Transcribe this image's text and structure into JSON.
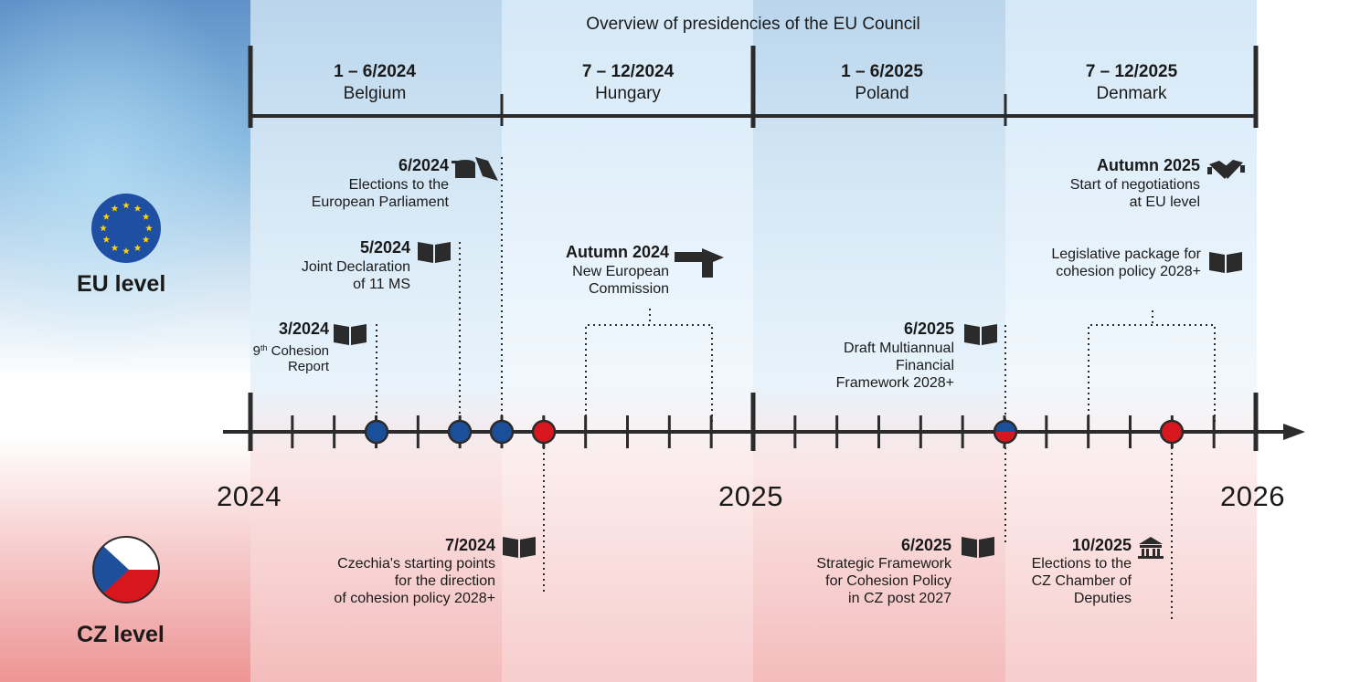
{
  "header": {
    "title": "Overview of presidencies of the EU Council"
  },
  "presidencies": [
    {
      "period": "1 – 6/2024",
      "country": "Belgium"
    },
    {
      "period": "7 – 12/2024",
      "country": "Hungary"
    },
    {
      "period": "1 – 6/2025",
      "country": "Poland"
    },
    {
      "period": "7 – 12/2025",
      "country": "Denmark"
    }
  ],
  "years": [
    "2024",
    "2025",
    "2026"
  ],
  "levels": {
    "eu": "EU level",
    "cz": "CZ level"
  },
  "colors": {
    "eu_blue": "#1c4f9a",
    "cz_red": "#d7161d",
    "line": "#2b2b2b"
  },
  "eu_events": [
    {
      "date": "6/2024",
      "lines": [
        "Elections to the",
        "European Parliament"
      ],
      "icon": "ballot-box-icon"
    },
    {
      "date": "5/2024",
      "lines": [
        "Joint Declaration",
        "of 11 MS"
      ],
      "icon": "book-icon"
    },
    {
      "date": "3/2024",
      "sup": "th",
      "lines": [
        "9",
        " Cohesion",
        "Report"
      ],
      "icon": "book-icon"
    },
    {
      "date": "Autumn 2024",
      "lines": [
        "New European",
        "Commission"
      ],
      "icon": "signpost-icon"
    },
    {
      "date": "6/2025",
      "lines": [
        "Draft Multiannual",
        "Financial",
        "Framework 2028+"
      ],
      "icon": "book-icon"
    },
    {
      "date": "Autumn 2025",
      "lines": [
        "Start of negotiations",
        "at EU level"
      ],
      "icon": "handshake-icon"
    },
    {
      "date": "",
      "lines": [
        "Legislative package for",
        "cohesion policy 2028+"
      ],
      "icon": "book-icon"
    }
  ],
  "cz_events": [
    {
      "date": "7/2024",
      "lines": [
        "Czechia's starting points",
        "for the direction",
        "of cohesion policy 2028+"
      ],
      "icon": "book-icon"
    },
    {
      "date": "6/2025",
      "lines": [
        "Strategic Framework",
        "for Cohesion Policy",
        "in CZ post 2027"
      ],
      "icon": "book-icon"
    },
    {
      "date": "10/2025",
      "lines": [
        "Elections to the",
        "CZ Chamber of",
        "Deputies"
      ],
      "icon": "government-building-icon"
    }
  ]
}
